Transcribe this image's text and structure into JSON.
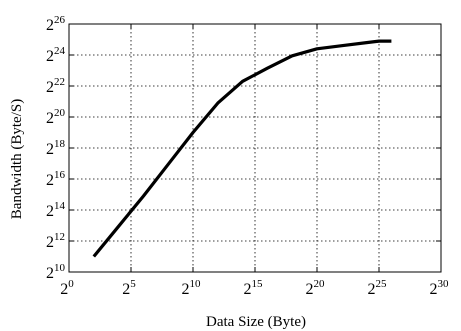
{
  "chart_data": {
    "type": "line",
    "xlabel": "Data Size (Byte)",
    "ylabel": "Bandwidth (Byte/S)",
    "x_scale": "log2",
    "y_scale": "log2",
    "xlim": [
      0,
      30
    ],
    "ylim": [
      10,
      26
    ],
    "x_ticks": [
      {
        "base": "2",
        "exp": "0",
        "value": 0
      },
      {
        "base": "2",
        "exp": "5",
        "value": 5
      },
      {
        "base": "2",
        "exp": "10",
        "value": 10
      },
      {
        "base": "2",
        "exp": "15",
        "value": 15
      },
      {
        "base": "2",
        "exp": "20",
        "value": 20
      },
      {
        "base": "2",
        "exp": "25",
        "value": 25
      },
      {
        "base": "2",
        "exp": "30",
        "value": 30
      }
    ],
    "y_ticks": [
      {
        "base": "2",
        "exp": "10",
        "value": 10
      },
      {
        "base": "2",
        "exp": "12",
        "value": 12
      },
      {
        "base": "2",
        "exp": "14",
        "value": 14
      },
      {
        "base": "2",
        "exp": "16",
        "value": 16
      },
      {
        "base": "2",
        "exp": "18",
        "value": 18
      },
      {
        "base": "2",
        "exp": "20",
        "value": 20
      },
      {
        "base": "2",
        "exp": "22",
        "value": 22
      },
      {
        "base": "2",
        "exp": "24",
        "value": 24
      },
      {
        "base": "2",
        "exp": "26",
        "value": 26
      }
    ],
    "grid": true,
    "series": [
      {
        "color": "#000000",
        "x": [
          2,
          4,
          6,
          8,
          10,
          12,
          14,
          16,
          18,
          20,
          22,
          24,
          25,
          26
        ],
        "y": [
          11.0,
          12.95,
          14.9,
          16.95,
          19.0,
          20.9,
          22.3,
          23.15,
          23.95,
          24.4,
          24.6,
          24.8,
          24.9,
          24.9
        ]
      }
    ]
  }
}
